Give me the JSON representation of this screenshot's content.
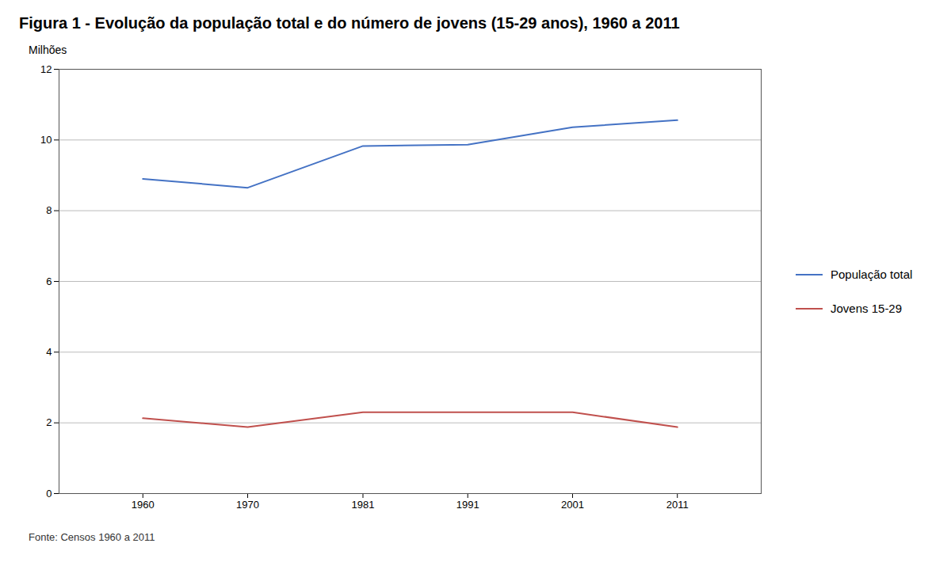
{
  "chart_data": {
    "type": "line",
    "title": "Figura 1 - Evolução da população total e do número de jovens (15-29 anos), 1960 a 2011",
    "y_label": "Milhões",
    "source": "Fonte: Censos 1960 a 2011",
    "x": [
      1960,
      1970,
      1981,
      1991,
      2001,
      2011
    ],
    "series": [
      {
        "name": "População total",
        "color": "#4472C4",
        "values": [
          8.9,
          8.65,
          9.83,
          9.87,
          10.36,
          10.56
        ]
      },
      {
        "name": "Jovens 15-29",
        "color": "#C0504D",
        "values": [
          2.13,
          1.88,
          2.3,
          2.3,
          2.3,
          1.88
        ]
      }
    ],
    "xlim": [
      1952,
      2019
    ],
    "xticks": [
      1960,
      1970,
      1981,
      1991,
      2001,
      2011
    ],
    "ylim": [
      0,
      12
    ],
    "yticks": [
      0,
      2,
      4,
      6,
      8,
      10,
      12
    ],
    "grid": true,
    "legend": "right"
  }
}
